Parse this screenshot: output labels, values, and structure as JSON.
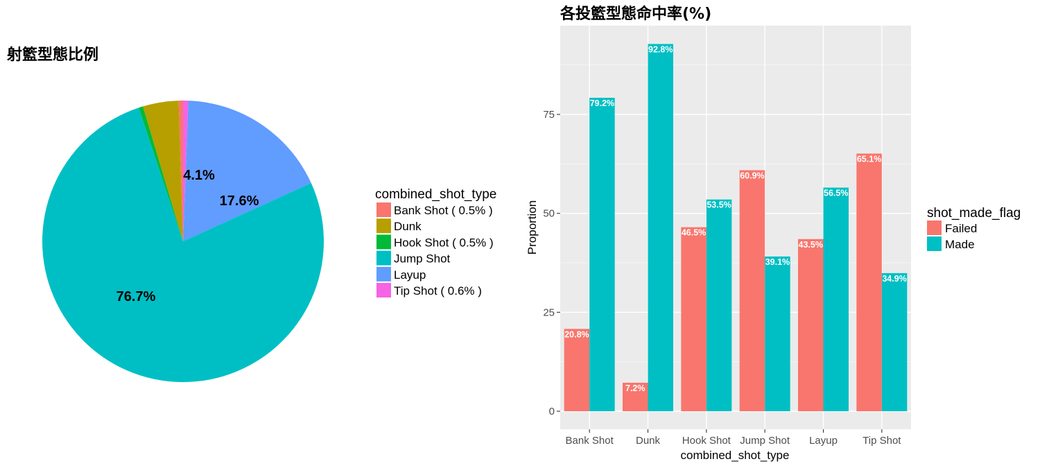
{
  "chart_data": [
    {
      "type": "pie",
      "title": "射籃型態比例",
      "legend_title": "combined_shot_type",
      "legend_position": "right",
      "slices": [
        {
          "name": "Bank Shot",
          "legend_label": "Bank Shot ( 0.5% )",
          "value": 0.5,
          "color": "#F8766D"
        },
        {
          "name": "Dunk",
          "legend_label": "Dunk",
          "value": 4.1,
          "color": "#B79F00"
        },
        {
          "name": "Hook Shot",
          "legend_label": "Hook Shot ( 0.5% )",
          "value": 0.5,
          "color": "#00BA38"
        },
        {
          "name": "Jump Shot",
          "legend_label": "Jump Shot",
          "value": 76.7,
          "color": "#00BFC4"
        },
        {
          "name": "Layup",
          "legend_label": "Layup",
          "value": 17.6,
          "color": "#619CFF"
        },
        {
          "name": "Tip Shot",
          "legend_label": "Tip Shot ( 0.6% )",
          "value": 0.6,
          "color": "#F564E3"
        }
      ],
      "labels": [
        {
          "slice": "Dunk",
          "text": "4.1%"
        },
        {
          "slice": "Layup",
          "text": "17.6%"
        },
        {
          "slice": "Jump Shot",
          "text": "76.7%"
        }
      ]
    },
    {
      "type": "bar",
      "title": "各投籃型態命中率(%)",
      "xlabel": "combined_shot_type",
      "ylabel": "Proportion",
      "ylim": [
        0,
        97
      ],
      "yticks": [
        0,
        25,
        50,
        75
      ],
      "grid": true,
      "legend_title": "shot_made_flag",
      "legend_position": "right",
      "categories": [
        "Bank Shot",
        "Dunk",
        "Hook Shot",
        "Jump Shot",
        "Layup",
        "Tip Shot"
      ],
      "series": [
        {
          "name": "Failed",
          "color": "#F8766D",
          "values": [
            20.8,
            7.2,
            46.5,
            60.9,
            43.5,
            65.1
          ],
          "labels": [
            "20.8%",
            "7.2%",
            "46.5%",
            "60.9%",
            "43.5%",
            "65.1%"
          ]
        },
        {
          "name": "Made",
          "color": "#00BFC4",
          "values": [
            79.2,
            92.8,
            53.5,
            39.1,
            56.5,
            34.9
          ],
          "labels": [
            "79.2%",
            "92.8%",
            "53.5%",
            "39.1%",
            "56.5%",
            "34.9%"
          ]
        }
      ]
    }
  ]
}
